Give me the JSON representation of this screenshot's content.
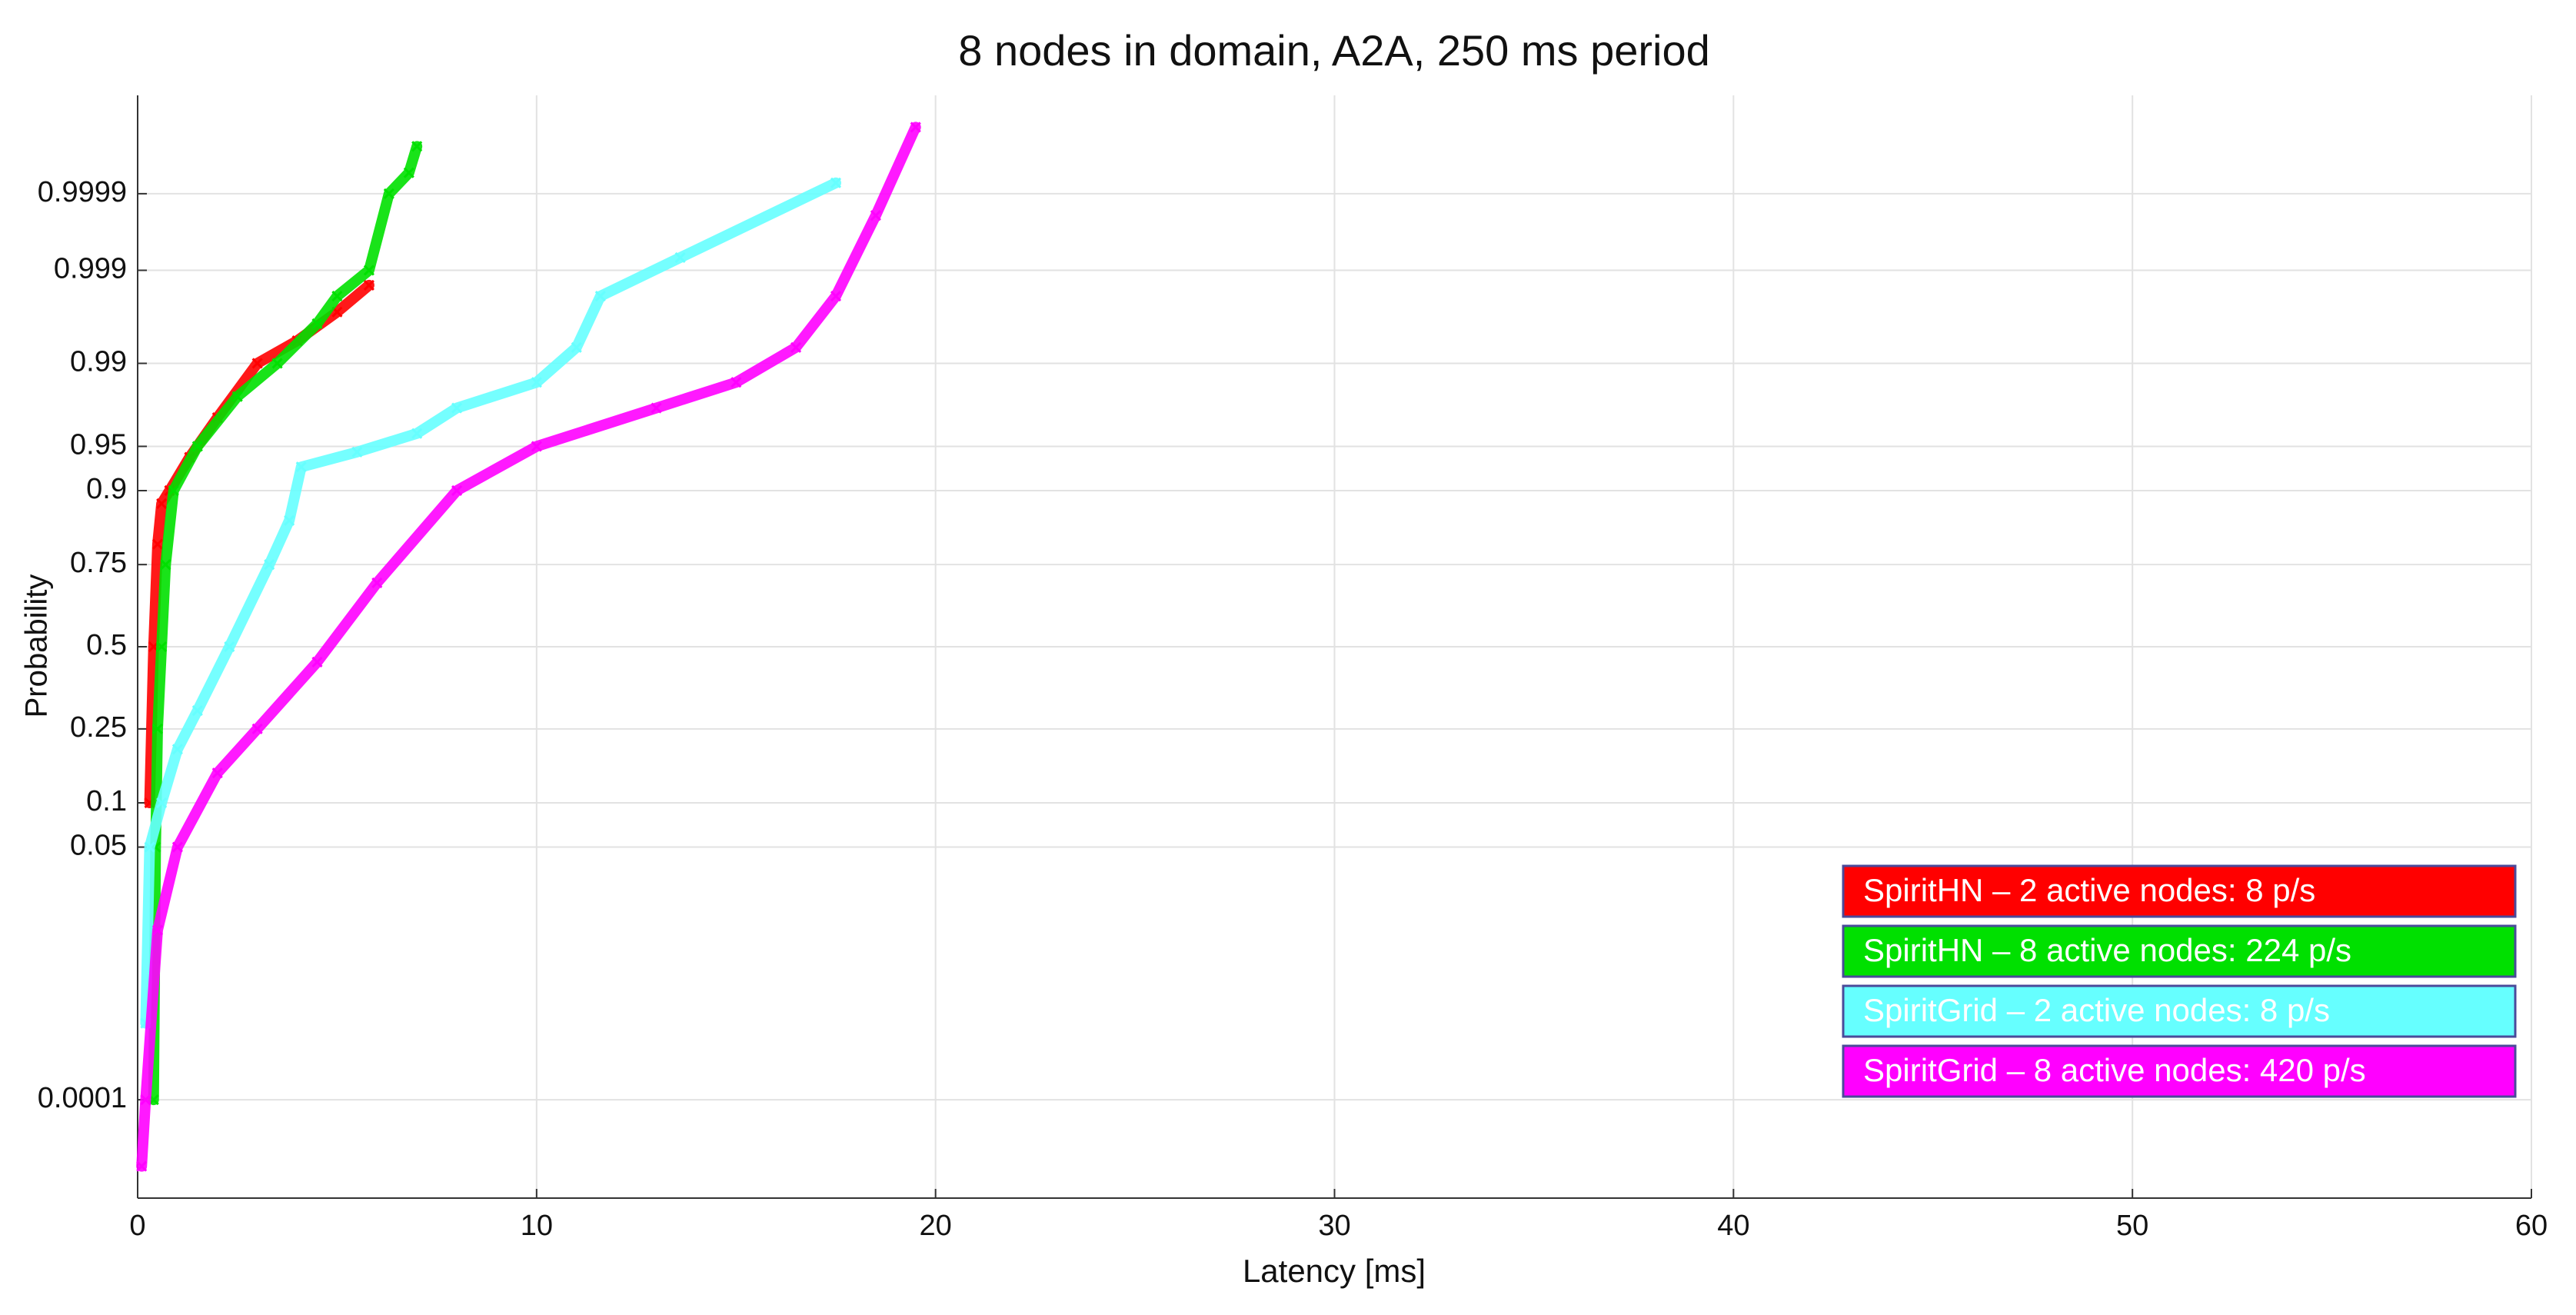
{
  "chart_data": {
    "type": "probability",
    "title": "8 nodes in domain, A2A, 250 ms period",
    "x_label": "Latency [ms]",
    "y_label": "Probability",
    "xlim": [
      0,
      60
    ],
    "xticks": [
      0,
      10,
      20,
      30,
      40,
      50,
      60
    ],
    "ylim": [
      3e-06,
      0.999997
    ],
    "yticks": [
      0.0001,
      0.05,
      0.1,
      0.25,
      0.5,
      0.75,
      0.9,
      0.95,
      0.99,
      0.999,
      0.9999
    ],
    "y_scale": "normal-probability",
    "grid": true,
    "legend": "lower right",
    "series": [
      {
        "name": "SpiritHN – 2 active nodes: 8 p/s",
        "color": "#ff0000",
        "x": [
          0.3,
          0.4,
          0.5,
          0.6,
          0.8,
          1.3,
          2.0,
          3.0,
          4.0,
          5.0,
          5.8
        ],
        "values": [
          0.1,
          0.5,
          0.8,
          0.88,
          0.9,
          0.94,
          0.97,
          0.99,
          0.994,
          0.997,
          0.9985
        ]
      },
      {
        "name": "SpiritHN – 8 active nodes: 224 p/s",
        "color": "#00e000",
        "x": [
          0.4,
          0.45,
          0.5,
          0.6,
          0.7,
          0.9,
          1.5,
          2.5,
          3.5,
          4.5,
          5.0,
          5.8,
          6.3,
          6.8,
          7.0
        ],
        "values": [
          0.0001,
          0.05,
          0.25,
          0.5,
          0.75,
          0.9,
          0.95,
          0.98,
          0.99,
          0.996,
          0.998,
          0.999,
          0.9999,
          0.99995,
          0.99998
        ]
      },
      {
        "name": "SpiritGrid – 2 active nodes: 8 p/s",
        "color": "#66ffff",
        "x": [
          0.2,
          0.3,
          0.6,
          1.0,
          1.5,
          2.3,
          3.3,
          3.8,
          4.1,
          5.5,
          7.0,
          8.0,
          10.0,
          11.0,
          11.6,
          13.6,
          17.5
        ],
        "values": [
          0.001,
          0.05,
          0.1,
          0.2,
          0.3,
          0.5,
          0.75,
          0.85,
          0.93,
          0.945,
          0.96,
          0.975,
          0.985,
          0.993,
          0.998,
          0.9993,
          0.99993
        ]
      },
      {
        "name": "SpiritGrid – 8 active nodes: 420 p/s",
        "color": "#ff00ff",
        "x": [
          0.1,
          0.2,
          0.5,
          1.0,
          2.0,
          3.0,
          4.5,
          6.0,
          8.0,
          10.0,
          13.0,
          15.0,
          16.5,
          17.5,
          18.5,
          19.5
        ],
        "values": [
          1e-05,
          0.0001,
          0.01,
          0.05,
          0.15,
          0.25,
          0.45,
          0.7,
          0.9,
          0.95,
          0.975,
          0.985,
          0.993,
          0.998,
          0.9998,
          0.99999
        ]
      }
    ]
  }
}
